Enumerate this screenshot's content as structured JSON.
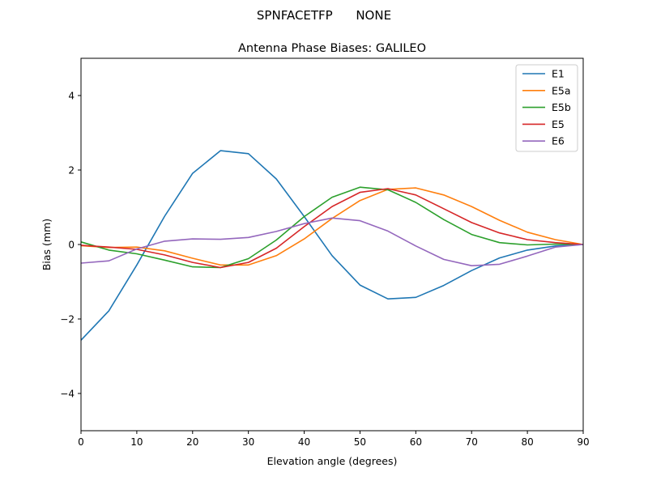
{
  "chart_data": {
    "type": "line",
    "suptitle": "SPNFACETFP      NONE",
    "title": "Antenna Phase Biases: GALILEO",
    "xlabel": "Elevation angle (degrees)",
    "ylabel": "Bias (mm)",
    "xlim": [
      0,
      90
    ],
    "ylim": [
      -5,
      5
    ],
    "xticks": [
      0,
      10,
      20,
      30,
      40,
      50,
      60,
      70,
      80,
      90
    ],
    "yticks": [
      -4,
      -2,
      0,
      2,
      4
    ],
    "ytick_labels": [
      "−4",
      "−2",
      "0",
      "2",
      "4"
    ],
    "grid": false,
    "legend_position": "top-right",
    "x": [
      0,
      5,
      10,
      15,
      20,
      25,
      30,
      35,
      40,
      45,
      50,
      55,
      60,
      65,
      70,
      75,
      80,
      85,
      90
    ],
    "series": [
      {
        "name": "E1",
        "color": "#1f77b4",
        "values": [
          -2.57,
          -1.78,
          -0.55,
          0.76,
          1.91,
          2.52,
          2.44,
          1.76,
          0.75,
          -0.3,
          -1.09,
          -1.46,
          -1.42,
          -1.1,
          -0.7,
          -0.36,
          -0.15,
          -0.04,
          0
        ]
      },
      {
        "name": "E5a",
        "color": "#ff7f0e",
        "values": [
          -0.03,
          -0.08,
          -0.07,
          -0.17,
          -0.37,
          -0.55,
          -0.55,
          -0.3,
          0.15,
          0.7,
          1.18,
          1.48,
          1.52,
          1.33,
          1.02,
          0.65,
          0.33,
          0.13,
          0
        ]
      },
      {
        "name": "E5b",
        "color": "#2ca02c",
        "values": [
          0.07,
          -0.15,
          -0.25,
          -0.42,
          -0.6,
          -0.62,
          -0.38,
          0.12,
          0.75,
          1.27,
          1.54,
          1.47,
          1.13,
          0.67,
          0.27,
          0.05,
          -0.01,
          0.01,
          0
        ]
      },
      {
        "name": "E5",
        "color": "#d62728",
        "values": [
          -0.02,
          -0.07,
          -0.13,
          -0.28,
          -0.48,
          -0.62,
          -0.48,
          -0.1,
          0.48,
          1.02,
          1.4,
          1.5,
          1.33,
          0.96,
          0.59,
          0.31,
          0.13,
          0.05,
          0
        ]
      },
      {
        "name": "E6",
        "color": "#9467bd",
        "values": [
          -0.5,
          -0.44,
          -0.12,
          0.09,
          0.15,
          0.14,
          0.19,
          0.35,
          0.56,
          0.71,
          0.64,
          0.36,
          -0.04,
          -0.4,
          -0.57,
          -0.53,
          -0.31,
          -0.07,
          0
        ]
      }
    ]
  }
}
